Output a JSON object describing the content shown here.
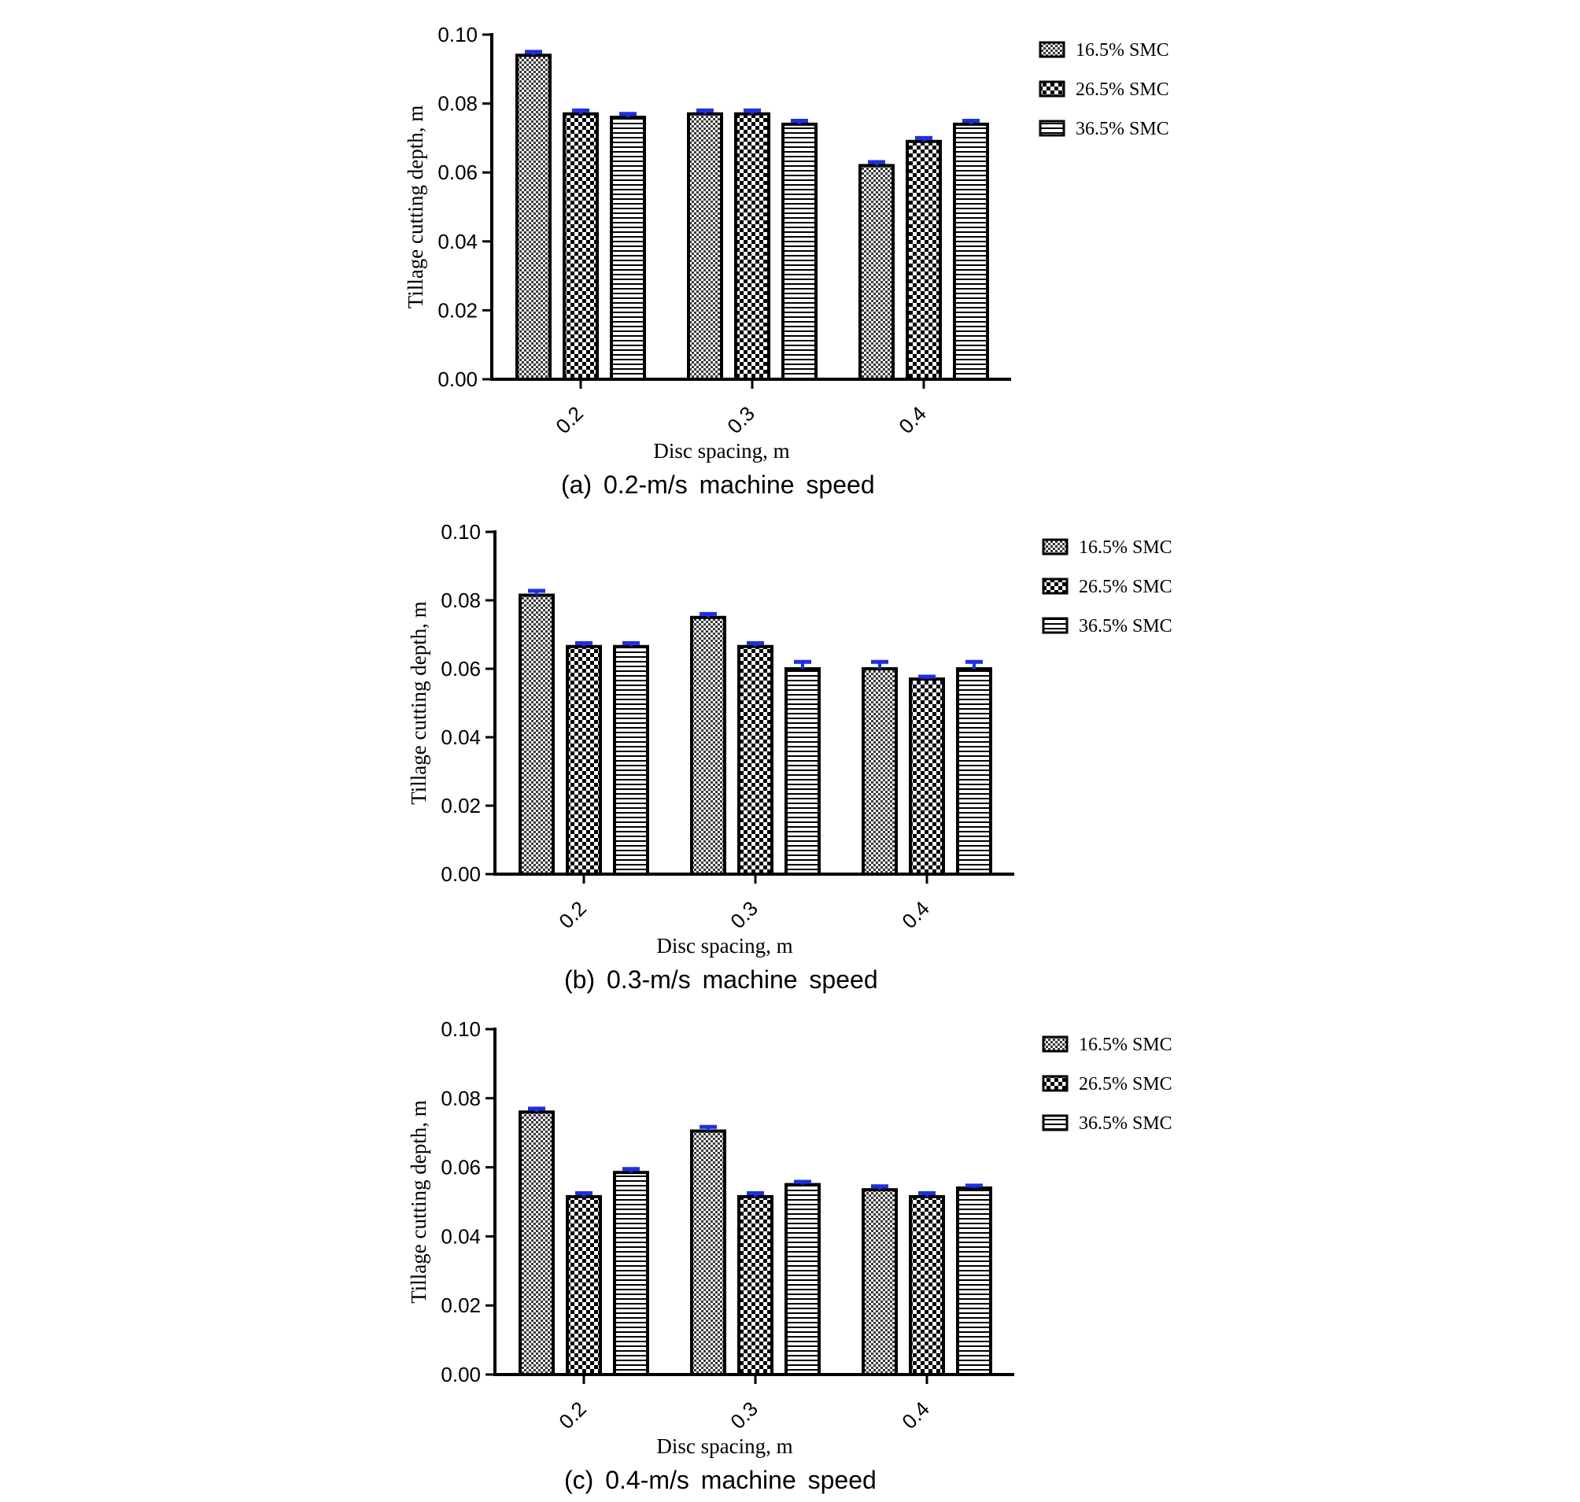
{
  "chart_data": [
    {
      "type": "bar",
      "caption": "(a)  0.2-m/s  machine  speed",
      "xlabel": "Disc spacing, m",
      "ylabel": "Tillage cutting depth, m",
      "ylim": [
        0,
        0.1
      ],
      "yticks": [
        "0.00",
        "0.02",
        "0.04",
        "0.06",
        "0.08",
        "0.10"
      ],
      "categories": [
        "0.2",
        "0.3",
        "0.4"
      ],
      "legend_position": "top-right",
      "series": [
        {
          "name": "16.5% SMC",
          "pattern": "fine-check",
          "values": [
            0.094,
            0.077,
            0.062
          ],
          "errors": [
            0.001,
            0.001,
            0.001
          ]
        },
        {
          "name": "26.5% SMC",
          "pattern": "checker",
          "values": [
            0.077,
            0.077,
            0.069
          ],
          "errors": [
            0.001,
            0.001,
            0.001
          ]
        },
        {
          "name": "36.5% SMC",
          "pattern": "horizontal-lines",
          "values": [
            0.076,
            0.074,
            0.074
          ],
          "errors": [
            0.001,
            0.001,
            0.001
          ]
        }
      ]
    },
    {
      "type": "bar",
      "caption": "(b)  0.3-m/s  machine  speed",
      "xlabel": "Disc spacing, m",
      "ylabel": "Tillage cutting depth, m",
      "ylim": [
        0,
        0.1
      ],
      "yticks": [
        "0.00",
        "0.02",
        "0.04",
        "0.06",
        "0.08",
        "0.10"
      ],
      "categories": [
        "0.2",
        "0.3",
        "0.4"
      ],
      "legend_position": "top-right",
      "series": [
        {
          "name": "16.5% SMC",
          "pattern": "fine-check",
          "values": [
            0.0815,
            0.075,
            0.06
          ],
          "errors": [
            0.0013,
            0.001,
            0.002
          ]
        },
        {
          "name": "26.5% SMC",
          "pattern": "checker",
          "values": [
            0.0665,
            0.0665,
            0.057
          ],
          "errors": [
            0.001,
            0.001,
            0.0007
          ]
        },
        {
          "name": "36.5% SMC",
          "pattern": "horizontal-lines",
          "values": [
            0.0665,
            0.06,
            0.06
          ],
          "errors": [
            0.001,
            0.002,
            0.002
          ]
        }
      ]
    },
    {
      "type": "bar",
      "caption": "(c)  0.4-m/s  machine  speed",
      "xlabel": "Disc spacing, m",
      "ylabel": "Tillage cutting depth, m",
      "ylim": [
        0,
        0.1
      ],
      "yticks": [
        "0.00",
        "0.02",
        "0.04",
        "0.06",
        "0.08",
        "0.10"
      ],
      "categories": [
        "0.2",
        "0.3",
        "0.4"
      ],
      "legend_position": "top-right",
      "series": [
        {
          "name": "16.5% SMC",
          "pattern": "fine-check",
          "values": [
            0.076,
            0.0705,
            0.0535
          ],
          "errors": [
            0.001,
            0.0012,
            0.001
          ]
        },
        {
          "name": "26.5% SMC",
          "pattern": "checker",
          "values": [
            0.0515,
            0.0515,
            0.0515
          ],
          "errors": [
            0.001,
            0.001,
            0.001
          ]
        },
        {
          "name": "36.5% SMC",
          "pattern": "horizontal-lines",
          "values": [
            0.0585,
            0.055,
            0.054
          ],
          "errors": [
            0.001,
            0.0008,
            0.0007
          ]
        }
      ]
    }
  ],
  "colors": {
    "bar_outline": "#000000",
    "error_bar": "#1f2fe0",
    "background": "#ffffff"
  }
}
